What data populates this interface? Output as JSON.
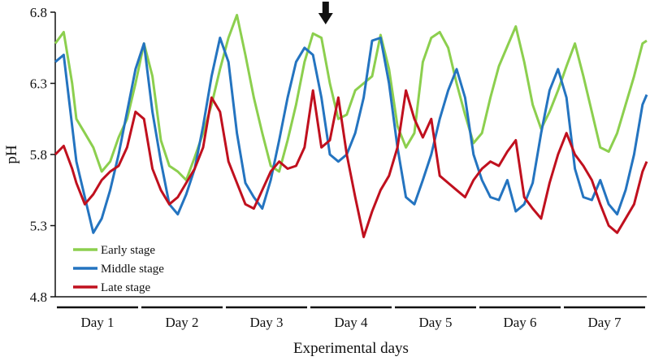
{
  "chart_data": {
    "type": "line",
    "title": "",
    "xlabel": "Experimental days",
    "ylabel": "pH",
    "ylim": [
      4.8,
      6.8
    ],
    "yticks": [
      "4.8",
      "5.3",
      "5.8",
      "6.3",
      "6.8"
    ],
    "xlim": [
      0,
      7
    ],
    "categories": [
      "Day 1",
      "Day 2",
      "Day 3",
      "Day 4",
      "Day 5",
      "Day 6",
      "Day 7"
    ],
    "annotation": {
      "label": "arrow",
      "x": 3.2
    },
    "legend_position": "bottom-left",
    "series": [
      {
        "name": "Early stage",
        "color": "#8ccf4e",
        "x": [
          0.0,
          0.1,
          0.2,
          0.25,
          0.35,
          0.45,
          0.55,
          0.65,
          0.75,
          0.85,
          0.95,
          1.05,
          1.15,
          1.25,
          1.35,
          1.45,
          1.55,
          1.65,
          1.75,
          1.85,
          1.95,
          2.05,
          2.15,
          2.25,
          2.35,
          2.45,
          2.55,
          2.65,
          2.75,
          2.85,
          2.95,
          3.05,
          3.15,
          3.25,
          3.35,
          3.45,
          3.55,
          3.65,
          3.75,
          3.85,
          3.95,
          4.05,
          4.15,
          4.25,
          4.35,
          4.45,
          4.55,
          4.65,
          4.75,
          4.85,
          4.95,
          5.05,
          5.15,
          5.25,
          5.35,
          5.45,
          5.55,
          5.65,
          5.75,
          5.85,
          5.95,
          6.05,
          6.15,
          6.25,
          6.35,
          6.45,
          6.55,
          6.65,
          6.75,
          6.85,
          6.95,
          7.0
        ],
        "values": [
          6.58,
          6.66,
          6.3,
          6.05,
          5.95,
          5.85,
          5.68,
          5.75,
          5.92,
          6.05,
          6.3,
          6.58,
          6.35,
          5.9,
          5.72,
          5.68,
          5.62,
          5.78,
          5.95,
          6.15,
          6.4,
          6.62,
          6.78,
          6.5,
          6.2,
          5.95,
          5.72,
          5.68,
          5.9,
          6.15,
          6.45,
          6.65,
          6.62,
          6.3,
          6.05,
          6.08,
          6.25,
          6.3,
          6.35,
          6.64,
          6.4,
          6.0,
          5.85,
          5.95,
          6.45,
          6.62,
          6.66,
          6.55,
          6.3,
          6.08,
          5.88,
          5.95,
          6.2,
          6.42,
          6.56,
          6.7,
          6.45,
          6.15,
          5.98,
          6.1,
          6.25,
          6.42,
          6.58,
          6.35,
          6.1,
          5.85,
          5.82,
          5.95,
          6.15,
          6.35,
          6.58,
          6.6
        ]
      },
      {
        "name": "Middle stage",
        "color": "#2474c0",
        "x": [
          0.0,
          0.1,
          0.2,
          0.25,
          0.35,
          0.45,
          0.55,
          0.65,
          0.75,
          0.85,
          0.95,
          1.05,
          1.15,
          1.25,
          1.35,
          1.45,
          1.55,
          1.65,
          1.75,
          1.85,
          1.95,
          2.05,
          2.15,
          2.25,
          2.35,
          2.45,
          2.55,
          2.65,
          2.75,
          2.85,
          2.95,
          3.05,
          3.15,
          3.25,
          3.35,
          3.45,
          3.55,
          3.65,
          3.75,
          3.85,
          3.95,
          4.05,
          4.15,
          4.25,
          4.35,
          4.45,
          4.55,
          4.65,
          4.75,
          4.85,
          4.95,
          5.05,
          5.15,
          5.25,
          5.35,
          5.45,
          5.55,
          5.65,
          5.75,
          5.85,
          5.95,
          6.05,
          6.15,
          6.25,
          6.35,
          6.45,
          6.55,
          6.65,
          6.75,
          6.85,
          6.95,
          7.0
        ],
        "values": [
          6.45,
          6.5,
          6.0,
          5.75,
          5.5,
          5.25,
          5.35,
          5.55,
          5.8,
          6.1,
          6.4,
          6.58,
          6.1,
          5.75,
          5.45,
          5.38,
          5.52,
          5.7,
          6.0,
          6.35,
          6.62,
          6.45,
          5.95,
          5.6,
          5.5,
          5.42,
          5.62,
          5.9,
          6.2,
          6.45,
          6.55,
          6.5,
          6.2,
          5.8,
          5.75,
          5.8,
          5.95,
          6.2,
          6.6,
          6.62,
          6.3,
          5.85,
          5.5,
          5.45,
          5.62,
          5.8,
          6.05,
          6.25,
          6.4,
          6.2,
          5.8,
          5.62,
          5.5,
          5.48,
          5.62,
          5.4,
          5.45,
          5.6,
          5.95,
          6.25,
          6.4,
          6.2,
          5.7,
          5.5,
          5.48,
          5.62,
          5.45,
          5.38,
          5.55,
          5.8,
          6.15,
          6.22
        ]
      },
      {
        "name": "Late stage",
        "color": "#c0101e",
        "x": [
          0.0,
          0.1,
          0.2,
          0.25,
          0.35,
          0.45,
          0.55,
          0.65,
          0.75,
          0.85,
          0.95,
          1.05,
          1.15,
          1.25,
          1.35,
          1.45,
          1.55,
          1.65,
          1.75,
          1.85,
          1.95,
          2.05,
          2.15,
          2.25,
          2.35,
          2.45,
          2.55,
          2.65,
          2.75,
          2.85,
          2.95,
          3.05,
          3.15,
          3.25,
          3.35,
          3.45,
          3.55,
          3.65,
          3.75,
          3.85,
          3.95,
          4.05,
          4.15,
          4.25,
          4.35,
          4.45,
          4.55,
          4.65,
          4.75,
          4.85,
          4.95,
          5.05,
          5.15,
          5.25,
          5.35,
          5.45,
          5.55,
          5.65,
          5.75,
          5.85,
          5.95,
          6.05,
          6.15,
          6.25,
          6.35,
          6.45,
          6.55,
          6.65,
          6.75,
          6.85,
          6.95,
          7.0
        ],
        "values": [
          5.8,
          5.86,
          5.7,
          5.6,
          5.45,
          5.52,
          5.62,
          5.68,
          5.72,
          5.85,
          6.1,
          6.05,
          5.7,
          5.55,
          5.45,
          5.5,
          5.6,
          5.7,
          5.85,
          6.2,
          6.1,
          5.75,
          5.6,
          5.45,
          5.42,
          5.55,
          5.68,
          5.75,
          5.7,
          5.72,
          5.85,
          6.25,
          5.85,
          5.9,
          6.2,
          5.8,
          5.5,
          5.22,
          5.4,
          5.55,
          5.65,
          5.85,
          6.25,
          6.05,
          5.92,
          6.05,
          5.65,
          5.6,
          5.55,
          5.5,
          5.62,
          5.7,
          5.75,
          5.72,
          5.82,
          5.9,
          5.5,
          5.42,
          5.35,
          5.6,
          5.8,
          5.95,
          5.8,
          5.72,
          5.62,
          5.45,
          5.3,
          5.25,
          5.35,
          5.45,
          5.68,
          5.75
        ]
      }
    ]
  }
}
